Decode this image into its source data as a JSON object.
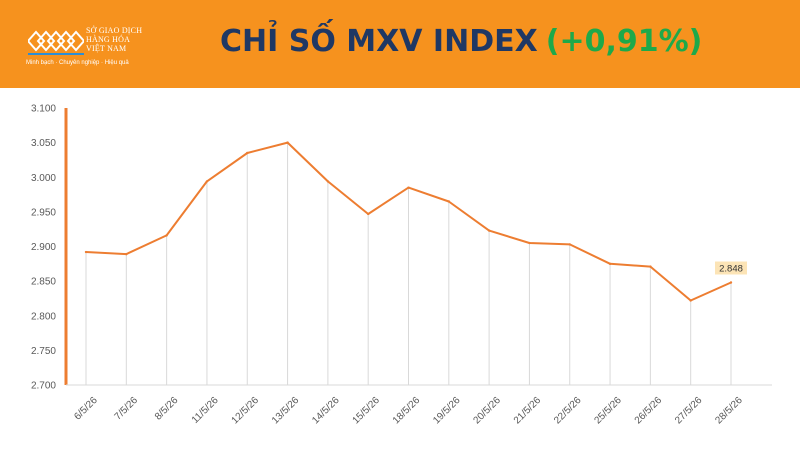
{
  "header": {
    "logo": {
      "line1": "SỞ GIAO DỊCH",
      "line2": "HÀNG HÓA",
      "line3": "VIỆT NAM",
      "slogan": "Minh bạch · Chuyên nghiệp · Hiệu quả"
    },
    "title": "CHỈ SỐ MXV INDEX",
    "change": "(+0,91%)",
    "colors": {
      "banner": "#f6921e",
      "title": "#1f3864",
      "change": "#1ea94a"
    }
  },
  "chart_data": {
    "type": "line",
    "title": "",
    "xlabel": "",
    "ylabel": "",
    "categories": [
      "6/5/26",
      "7/5/26",
      "8/5/26",
      "11/5/26",
      "12/5/26",
      "13/5/26",
      "14/5/26",
      "15/5/26",
      "18/5/26",
      "19/5/26",
      "20/5/26",
      "21/5/26",
      "22/5/26",
      "25/5/26",
      "26/5/26",
      "27/5/26",
      "28/5/26"
    ],
    "values": [
      2892,
      2889,
      2916,
      2994,
      3035,
      3050,
      2994,
      2947,
      2985,
      2965,
      2923,
      2905,
      2903,
      2875,
      2871,
      2822,
      2848
    ],
    "ylim": [
      2700,
      3100
    ],
    "yticks": [
      2700,
      2750,
      2800,
      2850,
      2900,
      2950,
      3000,
      3050,
      3100
    ],
    "ytick_labels": [
      "2.700",
      "2.750",
      "2.800",
      "2.850",
      "2.900",
      "2.950",
      "3.000",
      "3.050",
      "3.100"
    ],
    "last_label": "2.848",
    "grid": false,
    "drop_lines": true,
    "colors": {
      "line": "#ed7d31",
      "drop": "#d9d9d9",
      "label_bg": "#fce4b6"
    }
  }
}
